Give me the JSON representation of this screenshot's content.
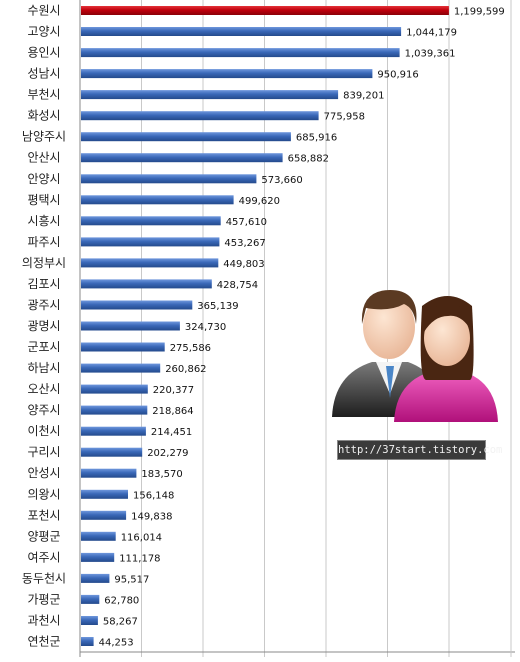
{
  "chart_data": {
    "type": "bar",
    "orientation": "horizontal",
    "title": "",
    "xlabel": "",
    "ylabel": "",
    "xlim": [
      0,
      1200000
    ],
    "grid": true,
    "highlight_color": "#c0000c",
    "bar_color": "#3a68b8",
    "categories": [
      "수원시",
      "고양시",
      "용인시",
      "성남시",
      "부천시",
      "화성시",
      "남양주시",
      "안산시",
      "안양시",
      "평택시",
      "시흥시",
      "파주시",
      "의정부시",
      "김포시",
      "광주시",
      "광명시",
      "군포시",
      "하남시",
      "오산시",
      "양주시",
      "이천시",
      "구리시",
      "안성시",
      "의왕시",
      "포천시",
      "양평군",
      "여주시",
      "동두천시",
      "가평군",
      "과천시",
      "연천군"
    ],
    "values": [
      1199599,
      1044179,
      1039361,
      950916,
      839201,
      775958,
      685916,
      658882,
      573660,
      499620,
      457610,
      453267,
      449803,
      428754,
      365139,
      324730,
      275586,
      260862,
      220377,
      218864,
      214451,
      202279,
      183570,
      156148,
      149838,
      116014,
      111178,
      95517,
      62780,
      58267,
      44253
    ],
    "value_labels": [
      "1,199,599",
      "1,044,179",
      "1,039,361",
      "950,916",
      "839,201",
      "775,958",
      "685,916",
      "658,882",
      "573,660",
      "499,620",
      "457,610",
      "453,267",
      "449,803",
      "428,754",
      "365,139",
      "324,730",
      "275,586",
      "260,862",
      "220,377",
      "218,864",
      "214,451",
      "202,279",
      "183,570",
      "156,148",
      "149,838",
      "116,014",
      "111,178",
      "95,517",
      "62,780",
      "58,267",
      "44,253"
    ]
  },
  "watermark": {
    "url": "http://37start.tistory.com",
    "icon": "people-icon"
  }
}
